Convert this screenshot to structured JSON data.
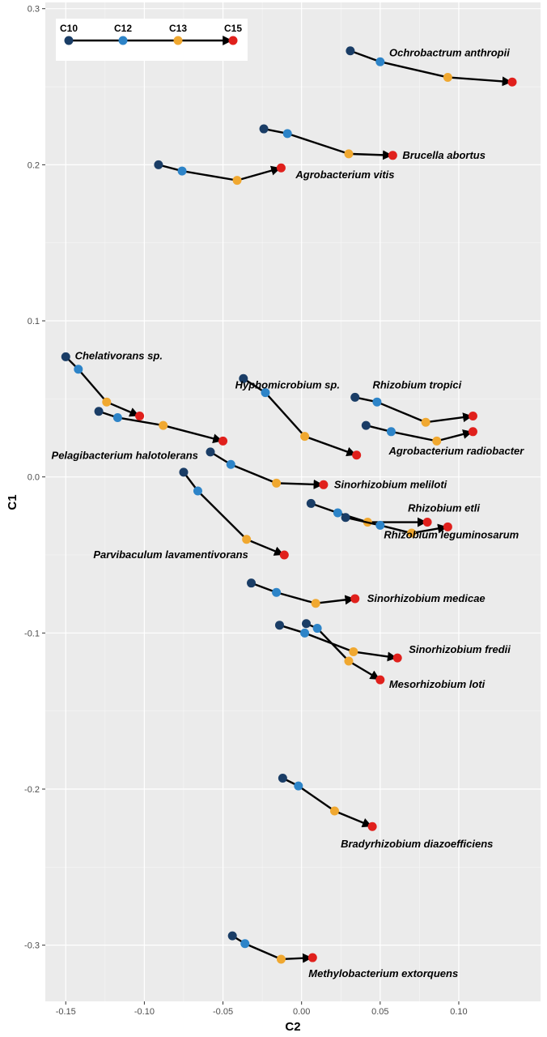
{
  "chart_data": {
    "type": "scatter",
    "xlabel": "C2",
    "ylabel": "C1",
    "xlim": [
      -0.163,
      0.152
    ],
    "ylim": [
      -0.336,
      0.304
    ],
    "x_ticks": [
      -0.15,
      -0.1,
      -0.05,
      0.0,
      0.05,
      0.1
    ],
    "x_tick_labels": [
      "-0.15",
      "-0.10",
      "-0.05",
      "0.00",
      "0.05",
      "0.10"
    ],
    "y_ticks": [
      0.3,
      0.2,
      0.1,
      0.0,
      -0.1,
      -0.2,
      -0.3
    ],
    "y_tick_labels": [
      "0.3",
      "0.2",
      "0.1",
      "0.0",
      "-0.1",
      "-0.2",
      "-0.3"
    ],
    "grid": true,
    "legend_placement": "top-left",
    "stages": [
      "C10",
      "C12",
      "C13",
      "C15"
    ],
    "stage_colors": [
      "#1a3d66",
      "#2d84c8",
      "#f0a830",
      "#e0201c"
    ],
    "arrow_color": "#000000",
    "panel_bg": "#ebebeb",
    "series": [
      {
        "name": "Ochrobactrum anthropii",
        "points": [
          [
            0.031,
            0.273
          ],
          [
            0.05,
            0.266
          ],
          [
            0.093,
            0.256
          ],
          [
            0.134,
            0.253
          ]
        ]
      },
      {
        "name": "Brucella abortus",
        "points": [
          [
            -0.024,
            0.223
          ],
          [
            -0.009,
            0.22
          ],
          [
            0.03,
            0.207
          ],
          [
            0.058,
            0.206
          ]
        ]
      },
      {
        "name": "Agrobacterium vitis",
        "points": [
          [
            -0.091,
            0.2
          ],
          [
            -0.076,
            0.196
          ],
          [
            -0.041,
            0.19
          ],
          [
            -0.013,
            0.198
          ]
        ]
      },
      {
        "name": "Chelativorans sp.",
        "points": [
          [
            -0.15,
            0.077
          ],
          [
            -0.142,
            0.069
          ],
          [
            -0.124,
            0.048
          ],
          [
            -0.103,
            0.039
          ]
        ]
      },
      {
        "name": "Pelagibacterium halotolerans",
        "points": [
          [
            -0.129,
            0.042
          ],
          [
            -0.117,
            0.038
          ],
          [
            -0.088,
            0.033
          ],
          [
            -0.05,
            0.023
          ]
        ]
      },
      {
        "name": "Hyphomicrobium sp.",
        "points": [
          [
            -0.037,
            0.063
          ],
          [
            -0.023,
            0.054
          ],
          [
            0.002,
            0.026
          ],
          [
            0.035,
            0.014
          ]
        ]
      },
      {
        "name": "Rhizobium tropici",
        "points": [
          [
            0.034,
            0.051
          ],
          [
            0.048,
            0.048
          ],
          [
            0.079,
            0.035
          ],
          [
            0.109,
            0.039
          ]
        ]
      },
      {
        "name": "Agrobacterium radiobacter",
        "points": [
          [
            0.041,
            0.033
          ],
          [
            0.057,
            0.029
          ],
          [
            0.086,
            0.023
          ],
          [
            0.109,
            0.029
          ]
        ]
      },
      {
        "name": "Sinorhizobium meliloti",
        "points": [
          [
            -0.058,
            0.016
          ],
          [
            -0.045,
            0.008
          ],
          [
            -0.016,
            -0.004
          ],
          [
            0.014,
            -0.005
          ]
        ]
      },
      {
        "name": "Rhizobium etli",
        "points": [
          [
            0.006,
            -0.017
          ],
          [
            0.023,
            -0.023
          ],
          [
            0.042,
            -0.029
          ],
          [
            0.08,
            -0.029
          ]
        ]
      },
      {
        "name": "Rhizobium leguminosarum",
        "points": [
          [
            0.028,
            -0.026
          ],
          [
            0.05,
            -0.031
          ],
          [
            0.07,
            -0.036
          ],
          [
            0.093,
            -0.032
          ]
        ]
      },
      {
        "name": "Parvibaculum lavamentivorans",
        "points": [
          [
            -0.075,
            0.003
          ],
          [
            -0.066,
            -0.009
          ],
          [
            -0.035,
            -0.04
          ],
          [
            -0.011,
            -0.05
          ]
        ]
      },
      {
        "name": "Sinorhizobium medicae",
        "points": [
          [
            -0.032,
            -0.068
          ],
          [
            -0.016,
            -0.074
          ],
          [
            0.009,
            -0.081
          ],
          [
            0.034,
            -0.078
          ]
        ]
      },
      {
        "name": "Sinorhizobium fredii",
        "points": [
          [
            -0.014,
            -0.095
          ],
          [
            0.002,
            -0.1
          ],
          [
            0.033,
            -0.112
          ],
          [
            0.061,
            -0.116
          ]
        ]
      },
      {
        "name": "Mesorhizobium loti",
        "points": [
          [
            0.003,
            -0.094
          ],
          [
            0.01,
            -0.097
          ],
          [
            0.03,
            -0.118
          ],
          [
            0.05,
            -0.13
          ]
        ]
      },
      {
        "name": "Bradyrhizobium diazoefficiens",
        "points": [
          [
            -0.012,
            -0.193
          ],
          [
            -0.002,
            -0.198
          ],
          [
            0.021,
            -0.214
          ],
          [
            0.045,
            -0.224
          ]
        ]
      },
      {
        "name": "Methylobacterium extorquens",
        "points": [
          [
            -0.044,
            -0.294
          ],
          [
            -0.036,
            -0.299
          ],
          [
            -0.013,
            -0.309
          ],
          [
            0.007,
            -0.308
          ]
        ]
      }
    ],
    "legend": {
      "labels": [
        "C10",
        "C12",
        "C13",
        "C15"
      ]
    }
  }
}
